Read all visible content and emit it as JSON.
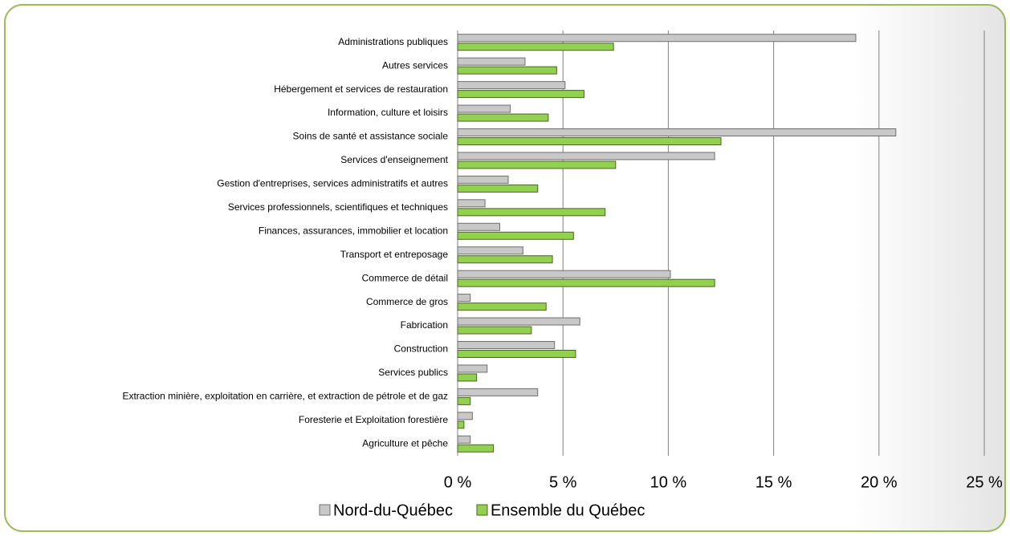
{
  "chart_data": {
    "type": "hbar",
    "categories": [
      "Administrations publiques",
      "Autres services",
      "Hébergement et services de restauration",
      "Information, culture et loisirs",
      "Soins de santé et assistance sociale",
      "Services d'enseignement",
      "Gestion d'entreprises, services administratifs et autres",
      "Services professionnels, scientifiques et techniques",
      "Finances, assurances, immobilier et location",
      "Transport et entreposage",
      "Commerce de détail",
      "Commerce de gros",
      "Fabrication",
      "Construction",
      "Services publics",
      "Extraction minière, exploitation en carrière, et extraction de pétrole et de gaz",
      "Foresterie et Exploitation forestière",
      "Agriculture et pêche"
    ],
    "series": [
      {
        "name": "Nord-du-Québec",
        "color": "#c8c8c8",
        "values": [
          18.9,
          3.2,
          5.1,
          2.5,
          20.8,
          12.2,
          2.4,
          1.3,
          2.0,
          3.1,
          10.1,
          0.6,
          5.8,
          4.6,
          1.4,
          3.8,
          0.7,
          0.6
        ]
      },
      {
        "name": "Ensemble du Québec",
        "color": "#92d050",
        "values": [
          7.4,
          4.7,
          6.0,
          4.3,
          12.5,
          7.5,
          3.8,
          7.0,
          5.5,
          4.5,
          12.2,
          4.2,
          3.5,
          5.6,
          0.9,
          0.6,
          0.3,
          1.7
        ]
      }
    ],
    "xlim": [
      0,
      25
    ],
    "xticks": [
      {
        "value": 0,
        "label": "0 %"
      },
      {
        "value": 5,
        "label": "5 %"
      },
      {
        "value": 10,
        "label": "10 %"
      },
      {
        "value": 15,
        "label": "15 %"
      },
      {
        "value": 20,
        "label": "20 %"
      },
      {
        "value": 25,
        "label": "25 %"
      }
    ],
    "grid": true,
    "legend": "bottom"
  }
}
